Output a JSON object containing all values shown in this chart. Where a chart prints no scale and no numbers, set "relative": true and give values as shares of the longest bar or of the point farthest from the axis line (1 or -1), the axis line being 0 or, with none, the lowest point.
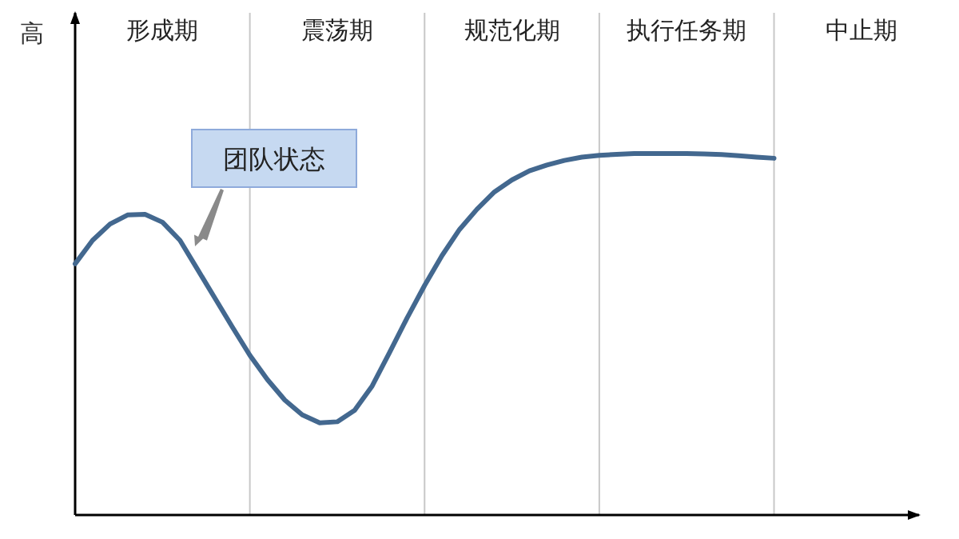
{
  "chart_data": {
    "type": "line",
    "relative": true,
    "ylabel": "高",
    "grid": "x",
    "categories": [
      null,
      null,
      null,
      null,
      null,
      "形成期",
      null,
      null,
      null,
      null,
      null,
      null,
      null,
      null,
      null,
      "震荡期",
      null,
      null,
      null,
      null,
      null,
      null,
      null,
      null,
      null,
      "规范化期",
      null,
      null,
      null,
      null,
      null,
      null,
      null,
      null,
      null,
      "执行任务期",
      null,
      null,
      null,
      null,
      null,
      null,
      null,
      null,
      null,
      "中止期",
      null,
      null,
      null
    ],
    "series": [
      {
        "color": "#43688f",
        "values": [
          0.695,
          0.76,
          0.805,
          0.83,
          0.832,
          0.81,
          0.76,
          0.68,
          0.6,
          0.52,
          0.442,
          0.375,
          0.318,
          0.277,
          0.255,
          0.258,
          0.29,
          0.357,
          0.45,
          0.545,
          0.635,
          0.718,
          0.79,
          0.846,
          0.894,
          0.927,
          0.952,
          0.968,
          0.981,
          0.99,
          0.995,
          0.998,
          1.0,
          1.0,
          1.0,
          1.0,
          0.999,
          0.997,
          0.994,
          0.99,
          0.987,
          null,
          null,
          null,
          null,
          null,
          null,
          null,
          null
        ]
      }
    ],
    "annotations": [
      "团队状态"
    ]
  }
}
